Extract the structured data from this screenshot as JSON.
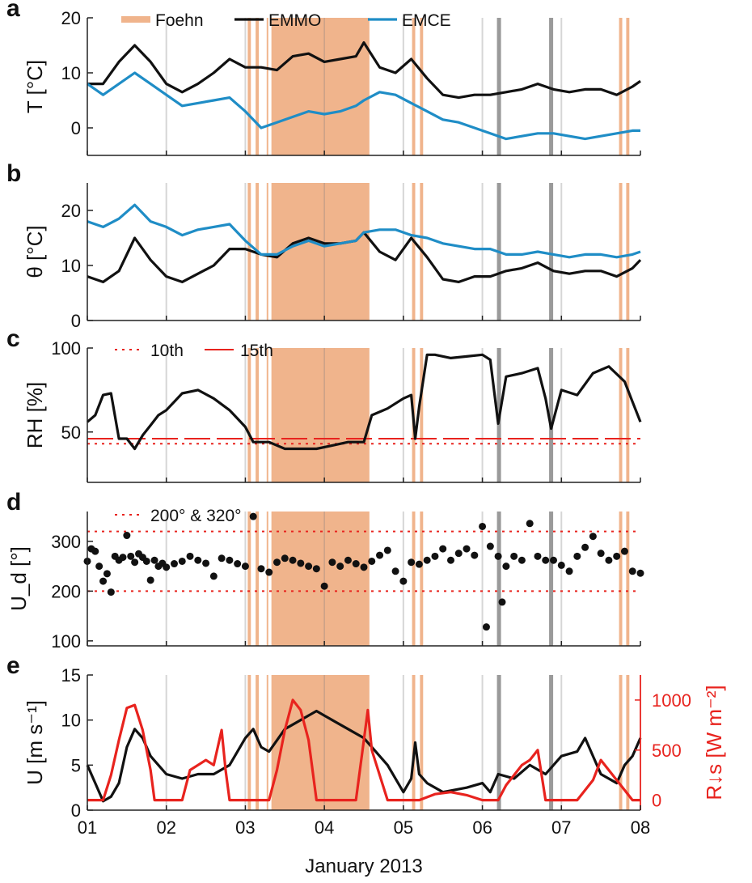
{
  "figure": {
    "xlabel": "January 2013",
    "x_tick_labels": [
      "01",
      "02",
      "03",
      "04",
      "05",
      "06",
      "07",
      "08"
    ]
  },
  "colors": {
    "foehn": "#f0b48c",
    "emmo": "#111111",
    "emce": "#1f8dc6",
    "threshold": "#e8231e",
    "radiation": "#e8231e",
    "grey_bar": "#9a9a9a",
    "light_bar": "#d6d6d6"
  },
  "shading": {
    "foehn_periods": [
      [
        3.03,
        3.07
      ],
      [
        3.13,
        3.17
      ],
      [
        3.27,
        3.29
      ],
      [
        3.33,
        4.57
      ],
      [
        5.11,
        5.15
      ],
      [
        5.21,
        5.25
      ],
      [
        7.73,
        7.77
      ],
      [
        7.82,
        7.86
      ]
    ],
    "grey_marks": [
      6.21,
      6.87
    ],
    "light_marks": [
      2.0,
      3.0,
      4.0,
      5.0,
      6.0,
      7.0,
      8.0
    ]
  },
  "chart_data": [
    {
      "panel": "a",
      "type": "line",
      "ylabel": "T [°C]",
      "ylim": [
        -5,
        20
      ],
      "yticks": [
        0,
        10,
        20
      ],
      "legend": [
        "Foehn",
        "EMMO",
        "EMCE"
      ],
      "x": [
        1.0,
        1.2,
        1.4,
        1.6,
        1.8,
        2.0,
        2.2,
        2.4,
        2.6,
        2.8,
        3.0,
        3.2,
        3.4,
        3.6,
        3.8,
        4.0,
        4.2,
        4.4,
        4.5,
        4.7,
        4.9,
        5.1,
        5.3,
        5.5,
        5.7,
        5.9,
        6.1,
        6.3,
        6.5,
        6.7,
        6.9,
        7.1,
        7.3,
        7.5,
        7.7,
        7.9,
        8.0
      ],
      "series": [
        {
          "name": "EMMO",
          "values": [
            8,
            8,
            12,
            15,
            12,
            8,
            6.5,
            8,
            10,
            12.5,
            11,
            11,
            10.5,
            13,
            13.5,
            12,
            12.5,
            13,
            15.5,
            11,
            10,
            12.5,
            9,
            6,
            5.5,
            6,
            6,
            6.5,
            7,
            8,
            7,
            6.5,
            7,
            7,
            6,
            7.5,
            8.5
          ]
        },
        {
          "name": "EMCE",
          "values": [
            8,
            6,
            8,
            10,
            8,
            6,
            4,
            4.5,
            5,
            5.5,
            3,
            0,
            1,
            2,
            3,
            2.5,
            3,
            4,
            5,
            6.5,
            6,
            4.5,
            3,
            1.5,
            1,
            0,
            -1,
            -2,
            -1.5,
            -1,
            -1,
            -1.5,
            -2,
            -1.5,
            -1,
            -0.5,
            -0.5
          ]
        }
      ]
    },
    {
      "panel": "b",
      "type": "line",
      "ylabel": "θ [°C]",
      "ylim": [
        0,
        25
      ],
      "yticks": [
        0,
        10,
        20
      ],
      "x": [
        1.0,
        1.2,
        1.4,
        1.6,
        1.8,
        2.0,
        2.2,
        2.4,
        2.6,
        2.8,
        3.0,
        3.2,
        3.4,
        3.6,
        3.8,
        4.0,
        4.2,
        4.4,
        4.5,
        4.7,
        4.9,
        5.1,
        5.3,
        5.5,
        5.7,
        5.9,
        6.1,
        6.3,
        6.5,
        6.7,
        6.9,
        7.1,
        7.3,
        7.5,
        7.7,
        7.9,
        8.0
      ],
      "series": [
        {
          "name": "EMMO",
          "values": [
            8,
            7,
            9,
            15,
            11,
            8,
            7,
            8.5,
            10,
            13,
            13,
            12,
            11.5,
            14,
            15,
            14,
            14,
            14.5,
            16,
            12.5,
            11,
            15,
            11.5,
            7.5,
            7,
            8,
            8,
            9,
            9.5,
            10.5,
            9,
            8.5,
            9,
            9,
            8,
            9.5,
            11
          ]
        },
        {
          "name": "EMCE",
          "values": [
            18,
            17,
            18.5,
            21,
            18,
            17,
            15.5,
            16.5,
            17,
            17.5,
            14.5,
            12,
            12,
            13.5,
            14.5,
            13.5,
            14,
            14.5,
            16,
            16.5,
            16.5,
            15.5,
            15,
            14,
            13.5,
            13,
            13,
            12,
            12,
            12.5,
            12,
            11.5,
            12,
            12,
            11.5,
            12,
            12.5
          ]
        }
      ]
    },
    {
      "panel": "c",
      "type": "line",
      "ylabel": "RH [%]",
      "ylim": [
        20,
        100
      ],
      "yticks": [
        50,
        100
      ],
      "legend": [
        "10th",
        "15th"
      ],
      "thresholds": [
        {
          "name": "10th",
          "value": 43,
          "style": "dotted"
        },
        {
          "name": "15th",
          "value": 46,
          "style": "dashed"
        }
      ],
      "series": [
        {
          "name": "RH",
          "x": [
            1.0,
            1.1,
            1.2,
            1.3,
            1.4,
            1.5,
            1.6,
            1.7,
            1.8,
            1.9,
            2.0,
            2.2,
            2.4,
            2.6,
            2.8,
            2.9,
            3.0,
            3.1,
            3.3,
            3.5,
            3.7,
            3.9,
            4.1,
            4.3,
            4.5,
            4.6,
            4.8,
            5.0,
            5.1,
            5.15,
            5.2,
            5.3,
            5.4,
            5.6,
            5.8,
            6.0,
            6.1,
            6.2,
            6.3,
            6.5,
            6.7,
            6.8,
            6.87,
            7.0,
            7.2,
            7.4,
            7.6,
            7.8,
            7.9,
            8.0
          ],
          "values": [
            56,
            60,
            72,
            73,
            46,
            46,
            40,
            48,
            54,
            60,
            63,
            73,
            75,
            70,
            63,
            58,
            53,
            44,
            44,
            40,
            40,
            40,
            42,
            44,
            44,
            60,
            64,
            70,
            72,
            46,
            65,
            96,
            96,
            94,
            95,
            96,
            93,
            55,
            83,
            85,
            88,
            70,
            52,
            75,
            72,
            85,
            89,
            80,
            68,
            56
          ]
        }
      ]
    },
    {
      "panel": "d",
      "type": "scatter",
      "ylabel": "U_d [°]",
      "ylim": [
        90,
        360
      ],
      "yticks": [
        100,
        200,
        300
      ],
      "legend": [
        "200° & 320°"
      ],
      "thresholds": [
        {
          "name": "200° & 320°",
          "value": 200,
          "style": "dotted"
        },
        {
          "name": "200° & 320°",
          "value": 320,
          "style": "dotted"
        }
      ],
      "series": [
        {
          "name": "U_d",
          "x": [
            1.0,
            1.05,
            1.1,
            1.15,
            1.2,
            1.25,
            1.3,
            1.35,
            1.4,
            1.45,
            1.5,
            1.55,
            1.6,
            1.65,
            1.7,
            1.75,
            1.8,
            1.85,
            1.9,
            1.95,
            2.0,
            2.1,
            2.2,
            2.3,
            2.4,
            2.5,
            2.6,
            2.7,
            2.8,
            2.9,
            3.0,
            3.1,
            3.2,
            3.3,
            3.4,
            3.5,
            3.6,
            3.7,
            3.8,
            3.9,
            4.0,
            4.1,
            4.2,
            4.3,
            4.4,
            4.5,
            4.6,
            4.7,
            4.8,
            4.9,
            5.0,
            5.1,
            5.2,
            5.3,
            5.4,
            5.5,
            5.6,
            5.7,
            5.8,
            5.9,
            6.0,
            6.05,
            6.1,
            6.2,
            6.25,
            6.3,
            6.4,
            6.5,
            6.6,
            6.7,
            6.8,
            6.9,
            7.0,
            7.1,
            7.2,
            7.3,
            7.4,
            7.5,
            7.6,
            7.7,
            7.8,
            7.9,
            8.0
          ],
          "values": [
            260,
            285,
            280,
            250,
            220,
            235,
            198,
            270,
            262,
            268,
            312,
            270,
            258,
            275,
            268,
            260,
            222,
            262,
            250,
            256,
            248,
            255,
            260,
            270,
            262,
            256,
            230,
            266,
            262,
            255,
            250,
            350,
            245,
            238,
            258,
            266,
            262,
            256,
            250,
            245,
            210,
            258,
            250,
            262,
            255,
            248,
            260,
            272,
            282,
            240,
            220,
            258,
            254,
            262,
            270,
            285,
            262,
            276,
            285,
            272,
            330,
            128,
            290,
            270,
            178,
            250,
            270,
            262,
            336,
            270,
            262,
            262,
            252,
            240,
            270,
            288,
            310,
            276,
            262,
            270,
            280,
            240,
            236
          ]
        }
      ]
    },
    {
      "panel": "e",
      "type": "line",
      "ylabel": "U [m s⁻¹]",
      "ylim": [
        0,
        15
      ],
      "yticks": [
        0,
        5,
        10,
        15
      ],
      "ylabel_right": "R↓s [W m⁻²]",
      "ylim_right": [
        -100,
        1250
      ],
      "yticks_right": [
        0,
        500,
        1000
      ],
      "series": [
        {
          "name": "U",
          "axis": "left",
          "x": [
            1.0,
            1.1,
            1.2,
            1.3,
            1.4,
            1.5,
            1.6,
            1.7,
            1.8,
            1.9,
            2.0,
            2.2,
            2.4,
            2.6,
            2.8,
            3.0,
            3.1,
            3.2,
            3.3,
            3.5,
            3.7,
            3.9,
            4.0,
            4.1,
            4.3,
            4.5,
            4.6,
            4.8,
            5.0,
            5.1,
            5.15,
            5.2,
            5.3,
            5.5,
            5.8,
            6.0,
            6.1,
            6.2,
            6.4,
            6.6,
            6.8,
            7.0,
            7.2,
            7.3,
            7.5,
            7.7,
            7.8,
            7.9,
            8.0
          ],
          "values": [
            5,
            3,
            1,
            1.5,
            3,
            7,
            9,
            8,
            6,
            5,
            4,
            3.5,
            4,
            4,
            5,
            8,
            9,
            7,
            6.5,
            9,
            10,
            11,
            10.5,
            10,
            9,
            8,
            7,
            5,
            2,
            3.5,
            7.5,
            4,
            3,
            2,
            2.5,
            3,
            2,
            4,
            3.5,
            5,
            4,
            6,
            6.5,
            8,
            4,
            3,
            5,
            6,
            8
          ]
        },
        {
          "name": "R↓s",
          "axis": "right",
          "x": [
            1.0,
            1.2,
            1.3,
            1.4,
            1.5,
            1.6,
            1.7,
            1.8,
            1.85,
            2.0,
            2.2,
            2.3,
            2.4,
            2.5,
            2.6,
            2.7,
            2.75,
            2.8,
            2.85,
            3.0,
            3.2,
            3.3,
            3.4,
            3.5,
            3.6,
            3.7,
            3.8,
            3.9,
            4.0,
            4.2,
            4.4,
            4.5,
            4.55,
            4.6,
            4.8,
            5.0,
            5.2,
            5.4,
            5.6,
            5.8,
            6.0,
            6.2,
            6.3,
            6.4,
            6.5,
            6.6,
            6.7,
            6.8,
            6.9,
            7.0,
            7.2,
            7.4,
            7.5,
            7.6,
            7.7,
            7.8,
            7.9,
            8.0
          ],
          "values": [
            0,
            0,
            250,
            600,
            920,
            950,
            700,
            300,
            0,
            0,
            0,
            300,
            350,
            400,
            350,
            700,
            300,
            0,
            0,
            0,
            0,
            0,
            300,
            700,
            1000,
            900,
            600,
            0,
            0,
            0,
            0,
            600,
            900,
            500,
            0,
            0,
            0,
            60,
            80,
            50,
            0,
            0,
            150,
            250,
            350,
            400,
            500,
            0,
            0,
            0,
            0,
            200,
            400,
            300,
            200,
            100,
            0,
            0
          ]
        }
      ]
    }
  ]
}
